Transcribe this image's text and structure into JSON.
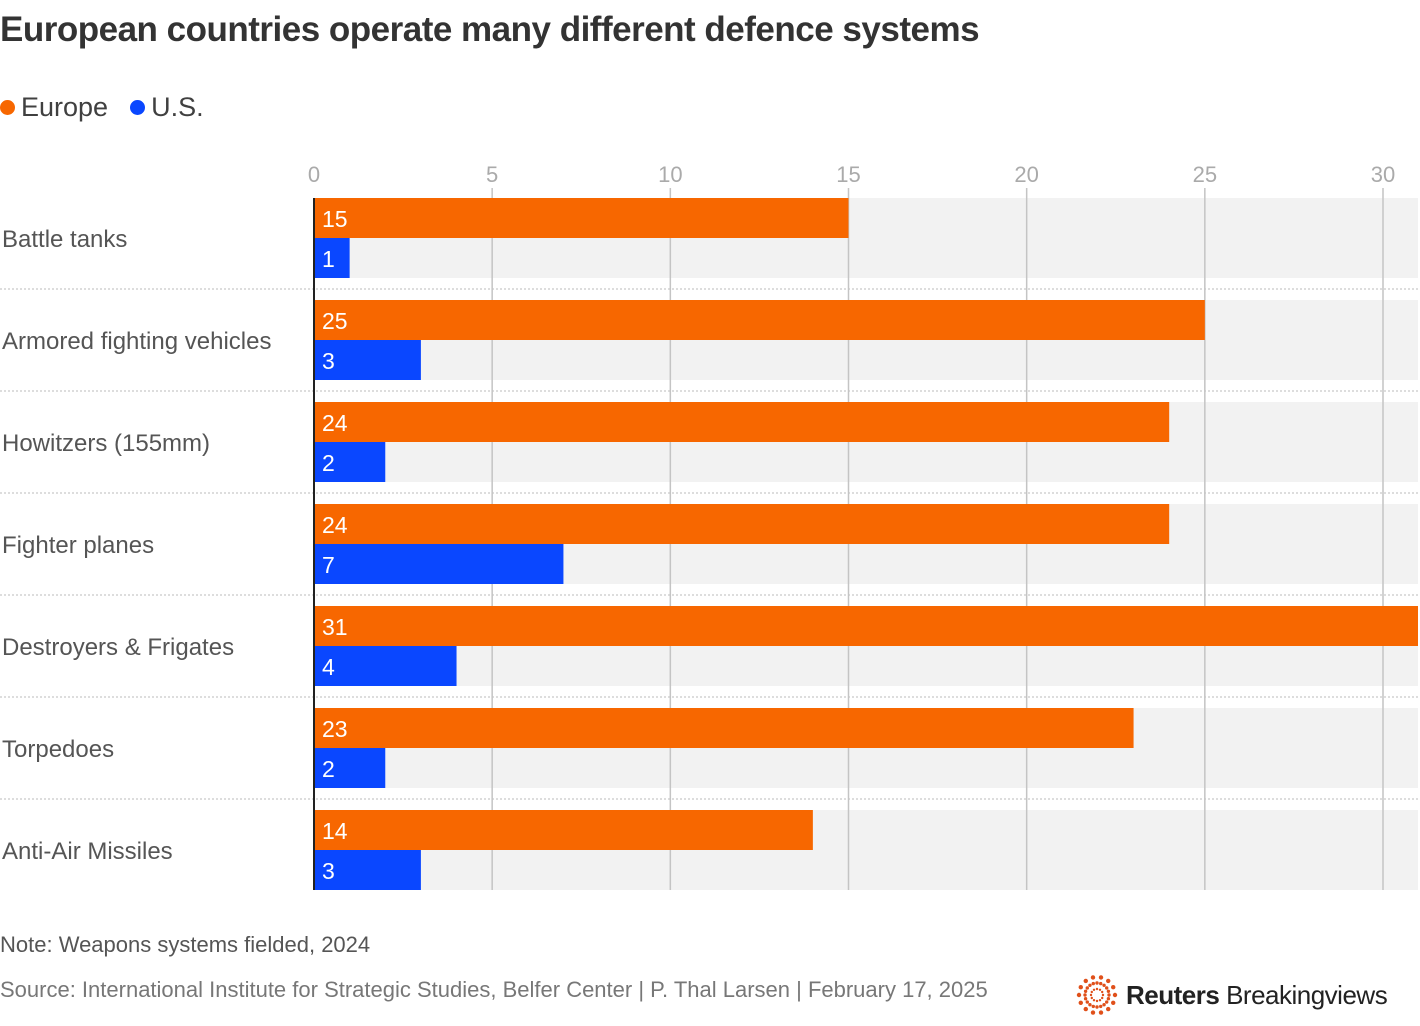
{
  "chart_data": {
    "type": "bar",
    "orientation": "horizontal",
    "title": "European countries operate many different defence systems",
    "categories": [
      "Battle tanks",
      "Armored fighting vehicles",
      "Howitzers (155mm)",
      "Fighter planes",
      "Destroyers & Frigates",
      "Torpedoes",
      "Anti-Air Missiles"
    ],
    "series": [
      {
        "name": "Europe",
        "color": "#f76700",
        "values": [
          15,
          25,
          24,
          24,
          31,
          23,
          14
        ]
      },
      {
        "name": "U.S.",
        "color": "#0a47ff",
        "values": [
          1,
          3,
          2,
          7,
          4,
          2,
          3
        ]
      }
    ],
    "xticks": [
      "0",
      "5",
      "10",
      "15",
      "20",
      "25",
      "30"
    ],
    "xlim": [
      0,
      31
    ],
    "grid": true,
    "legend_position": "top-left",
    "data_labels": true
  },
  "note": "Note: Weapons systems fielded, 2024",
  "source": "Source: International Institute for Strategic Studies, Belfer Center | P. Thal Larsen | February 17, 2025",
  "logo": {
    "bold": "Reuters",
    "regular": "Breakingviews"
  }
}
